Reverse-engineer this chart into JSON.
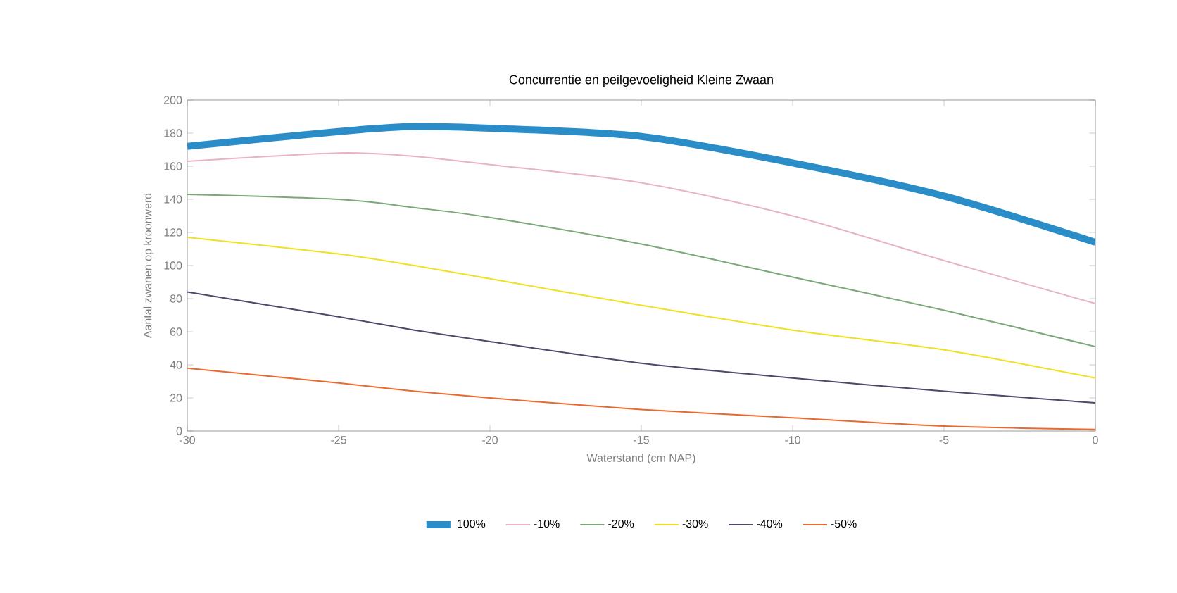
{
  "chart_data": {
    "type": "line",
    "title": "Concurrentie en peilgevoeligheid Kleine Zwaan",
    "xlabel": "Waterstand (cm NAP)",
    "ylabel": "Aantal zwanen op kroonwerd",
    "x": [
      -30,
      -25,
      -22.5,
      -20,
      -15,
      -10,
      -5,
      0
    ],
    "xlim": [
      -30,
      0
    ],
    "xticks": [
      -30,
      -25,
      -20,
      -15,
      -10,
      -5,
      0
    ],
    "ylim": [
      0,
      200
    ],
    "yticks": [
      0,
      20,
      40,
      60,
      80,
      100,
      120,
      140,
      160,
      180,
      200
    ],
    "grid": false,
    "legend": "bottom",
    "marker": "none",
    "line_style": "solid",
    "series": [
      {
        "name": "100%",
        "color": "#2a8dc8",
        "values": [
          172,
          181,
          184,
          183,
          178,
          162,
          142,
          114
        ]
      },
      {
        "name": "-10%",
        "color": "#e8b4c0",
        "values": [
          163,
          168,
          166,
          161,
          150,
          130,
          103,
          77
        ]
      },
      {
        "name": "-20%",
        "color": "#7aa87a",
        "values": [
          143,
          140,
          135,
          129,
          113,
          93,
          73,
          51
        ]
      },
      {
        "name": "-30%",
        "color": "#f0e020",
        "values": [
          117,
          107,
          100,
          92,
          76,
          61,
          49,
          32
        ]
      },
      {
        "name": "-40%",
        "color": "#4a4a6a",
        "values": [
          84,
          69,
          61,
          54,
          41,
          32,
          24,
          17
        ]
      },
      {
        "name": "-50%",
        "color": "#e86a30",
        "values": [
          38,
          29,
          24,
          20,
          13,
          8,
          3,
          1
        ]
      }
    ]
  }
}
